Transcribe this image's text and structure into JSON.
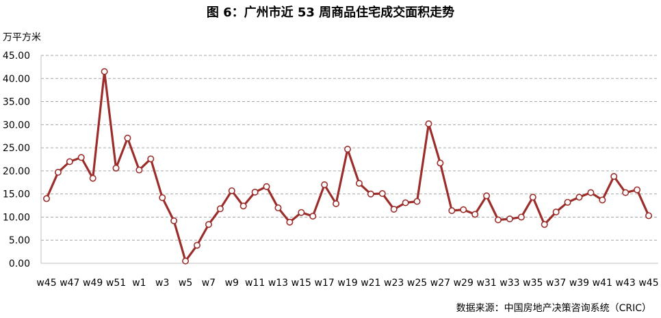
{
  "title": "图 6：广州市近 53 周商品住宅成交面积走势",
  "source": "数据来源：中国房地产决策咨询系统（CRIC）",
  "colors": {
    "line": "#9b2d2a",
    "marker_fill": "#ffffff",
    "grid": "#a6a6a6"
  },
  "chart_data": {
    "type": "line",
    "ylabel": "万平方米",
    "ylim": [
      0,
      45
    ],
    "yticks": [
      "0.00",
      "5.00",
      "10.00",
      "15.00",
      "20.00",
      "25.00",
      "30.00",
      "35.00",
      "40.00",
      "45.00"
    ],
    "grid": "horizontal-dashed",
    "categories": [
      "w45",
      "w46",
      "w47",
      "w48",
      "w49",
      "w50",
      "w51",
      "w52",
      "w1",
      "w2",
      "w3",
      "w4",
      "w5",
      "w6",
      "w7",
      "w8",
      "w9",
      "w10",
      "w11",
      "w12",
      "w13",
      "w14",
      "w15",
      "w16",
      "w17",
      "w18",
      "w19",
      "w20",
      "w21",
      "w22",
      "w23",
      "w24",
      "w25",
      "w26",
      "w27",
      "w28",
      "w29",
      "w30",
      "w31",
      "w32",
      "w33",
      "w34",
      "w35",
      "w36",
      "w37",
      "w38",
      "w39",
      "w40",
      "w41",
      "w42",
      "w43",
      "w44",
      "w45"
    ],
    "xtick_labels": [
      "w45",
      "w47",
      "w49",
      "w51",
      "w1",
      "w3",
      "w5",
      "w7",
      "w9",
      "w11",
      "w13",
      "w15",
      "w17",
      "w19",
      "w21",
      "w23",
      "w25",
      "w27",
      "w29",
      "w31",
      "w33",
      "w35",
      "w37",
      "w39",
      "w41",
      "w43",
      "w45"
    ],
    "series": [
      {
        "values": [
          14.0,
          19.7,
          22.0,
          22.9,
          18.4,
          41.5,
          20.6,
          27.1,
          20.2,
          22.6,
          14.2,
          9.2,
          0.5,
          3.9,
          8.4,
          11.8,
          15.7,
          12.4,
          15.4,
          16.6,
          12.0,
          8.9,
          11.0,
          10.2,
          17.0,
          12.9,
          24.7,
          17.3,
          15.0,
          15.1,
          11.7,
          13.1,
          13.4,
          30.2,
          21.7,
          11.4,
          11.6,
          10.6,
          14.6,
          9.4,
          9.6,
          10.0,
          14.3,
          8.4,
          11.1,
          13.2,
          14.3,
          15.3,
          13.7,
          18.8,
          15.3,
          15.9,
          10.3
        ]
      }
    ]
  }
}
